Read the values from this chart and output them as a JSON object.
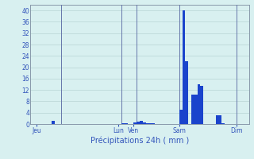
{
  "title": "Précipitations 24h ( mm )",
  "background_color": "#d8f0f0",
  "bar_color": "#1a44cc",
  "grid_color": "#b8d4d4",
  "axis_label_color": "#3355bb",
  "tick_label_color": "#3355bb",
  "ylim": [
    0,
    42
  ],
  "yticks": [
    0,
    4,
    8,
    12,
    16,
    20,
    24,
    28,
    32,
    36,
    40
  ],
  "n_bars": 72,
  "bar_values": [
    0,
    0,
    0,
    0,
    0,
    0,
    0,
    1,
    0,
    0,
    0,
    0,
    0,
    0,
    0,
    0,
    0,
    0,
    0,
    0,
    0,
    0,
    0,
    0,
    0,
    0,
    0,
    0,
    0,
    0,
    0.3,
    0.4,
    0,
    0,
    0.5,
    0.8,
    1,
    0.5,
    0.3,
    0.3,
    0.3,
    0,
    0,
    0,
    0,
    0,
    0,
    0,
    0,
    5,
    40,
    22,
    0,
    10.5,
    10.5,
    14,
    13.5,
    0,
    0,
    0,
    0,
    3,
    3,
    0.3,
    0,
    0,
    0,
    0,
    0,
    0,
    0,
    0
  ],
  "day_labels": [
    "Jeu",
    "Lun",
    "Ven",
    "Sam",
    "Dim"
  ],
  "day_tick_positions": [
    2,
    29,
    34,
    49,
    68
  ],
  "vline_positions": [
    10,
    30,
    35,
    49,
    68
  ],
  "vline_color": "#6677aa",
  "spine_color": "#8899aa"
}
